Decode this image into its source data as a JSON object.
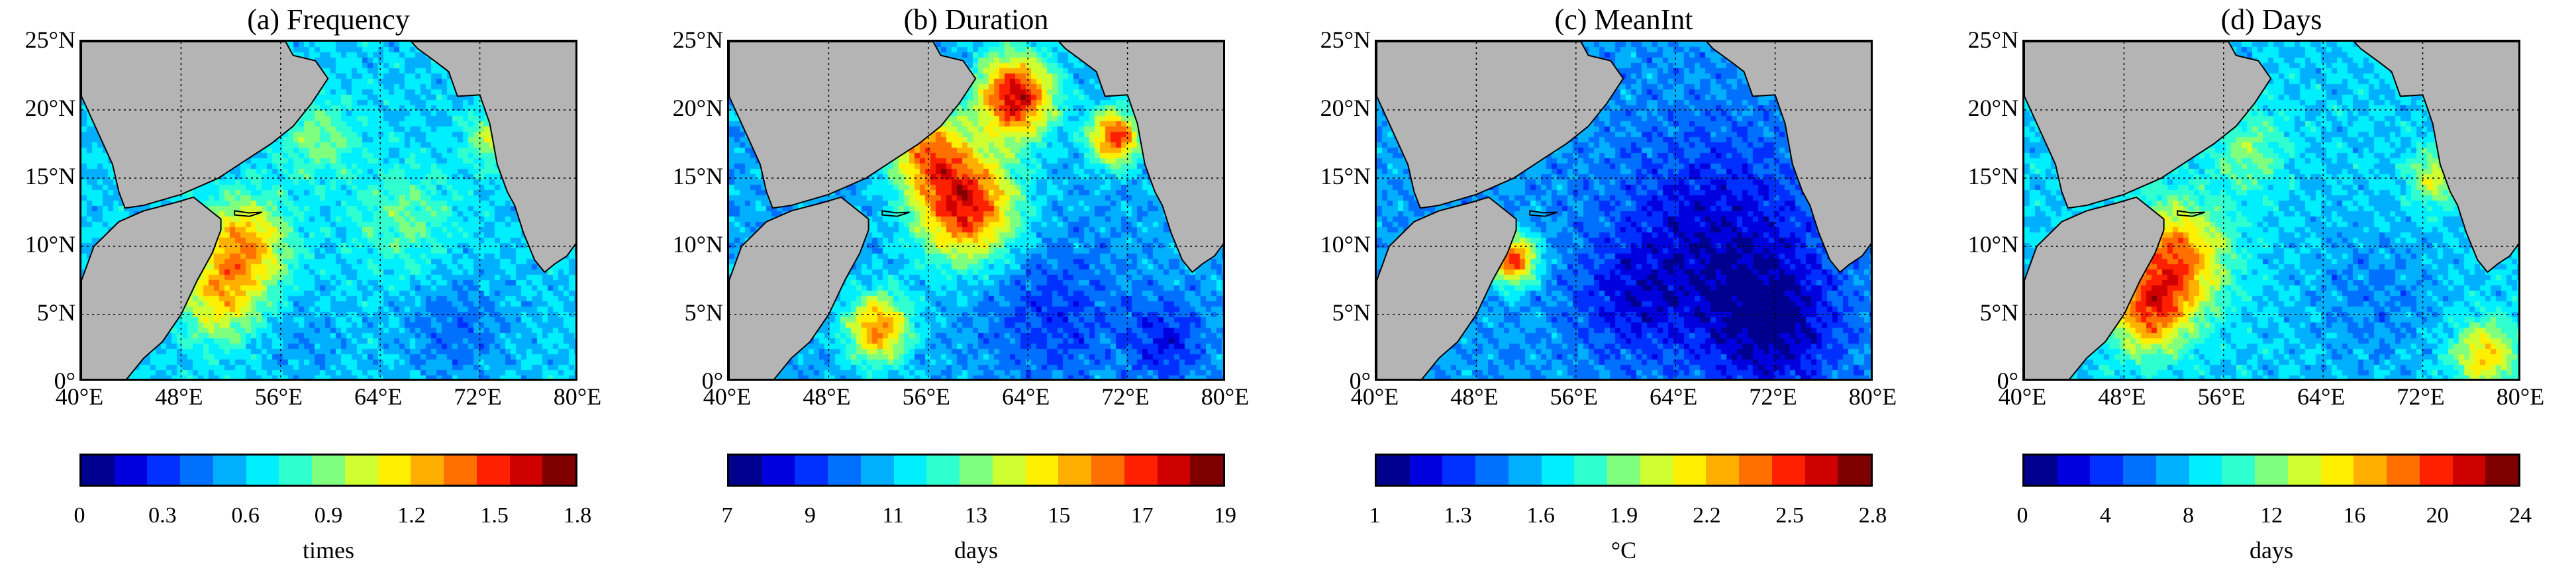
{
  "colormap": [
    "#00008f",
    "#0000df",
    "#0030ff",
    "#0070ff",
    "#00b0ff",
    "#00efff",
    "#30ffcf",
    "#80ff7f",
    "#cfff30",
    "#ffef00",
    "#ffaf00",
    "#ff7000",
    "#ff2000",
    "#cf0000",
    "#800000"
  ],
  "land_color": "#b4b4b4",
  "y_ticks": [
    "25°N",
    "20°N",
    "15°N",
    "10°N",
    "5°N",
    "0°"
  ],
  "x_ticks": [
    "40°E",
    "48°E",
    "56°E",
    "64°E",
    "72°E",
    "80°E"
  ],
  "chart_data": [
    {
      "type": "heatmap",
      "title": "(a) Frequency",
      "xlabel": "",
      "ylabel": "",
      "xlim": [
        40,
        80
      ],
      "ylim": [
        0,
        25
      ],
      "grid": true,
      "colorbar": {
        "ticks": [
          "0",
          "0.3",
          "0.6",
          "0.9",
          "1.2",
          "1.5",
          "1.8"
        ],
        "range": [
          0,
          1.8
        ],
        "label": "times"
      },
      "field": {
        "background": 0.6,
        "hotspots": [
          {
            "lon": 53,
            "lat": 10,
            "r": 3.5,
            "v": 1.3
          },
          {
            "lon": 51,
            "lat": 6,
            "r": 3,
            "v": 1.1
          },
          {
            "lon": 59,
            "lat": 18,
            "r": 3,
            "v": 0.9
          },
          {
            "lon": 66,
            "lat": 12,
            "r": 4,
            "v": 0.85
          },
          {
            "lon": 70,
            "lat": 4,
            "r": 4,
            "v": 0.4
          },
          {
            "lon": 58,
            "lat": 3,
            "r": 3,
            "v": 0.5
          },
          {
            "lon": 73,
            "lat": 18,
            "r": 2,
            "v": 1.0
          }
        ]
      }
    },
    {
      "type": "heatmap",
      "title": "(b) Duration",
      "xlabel": "",
      "ylabel": "",
      "xlim": [
        40,
        80
      ],
      "ylim": [
        0,
        25
      ],
      "grid": true,
      "colorbar": {
        "ticks": [
          "7",
          "9",
          "11",
          "13",
          "15",
          "17",
          "19"
        ],
        "range": [
          7,
          19
        ],
        "label": "days"
      },
      "field": {
        "background": 10.5,
        "hotspots": [
          {
            "lon": 59,
            "lat": 13,
            "r": 4,
            "v": 17.5
          },
          {
            "lon": 63,
            "lat": 21,
            "r": 3,
            "v": 18
          },
          {
            "lon": 52,
            "lat": 4,
            "r": 2.5,
            "v": 16
          },
          {
            "lon": 71,
            "lat": 18,
            "r": 2,
            "v": 17
          },
          {
            "lon": 66,
            "lat": 5,
            "r": 5,
            "v": 9
          },
          {
            "lon": 75,
            "lat": 3,
            "r": 3,
            "v": 8.5
          },
          {
            "lon": 56,
            "lat": 17,
            "r": 3,
            "v": 15
          }
        ]
      }
    },
    {
      "type": "heatmap",
      "title": "(c) MeanInt",
      "xlabel": "",
      "ylabel": "",
      "xlim": [
        40,
        80
      ],
      "ylim": [
        0,
        25
      ],
      "grid": true,
      "colorbar": {
        "ticks": [
          "1",
          "1.3",
          "1.6",
          "1.9",
          "2.2",
          "2.5",
          "2.8"
        ],
        "range": [
          1,
          2.8
        ],
        "label": "°C"
      },
      "field": {
        "background": 1.5,
        "hotspots": [
          {
            "lon": 51,
            "lat": 9,
            "r": 1.8,
            "v": 2.5
          },
          {
            "lon": 67,
            "lat": 10,
            "r": 8,
            "v": 1.15
          },
          {
            "lon": 72,
            "lat": 4,
            "r": 5,
            "v": 1.15
          },
          {
            "lon": 60,
            "lat": 6,
            "r": 4,
            "v": 1.3
          },
          {
            "lon": 46,
            "lat": 15,
            "r": 2,
            "v": 1.4
          }
        ]
      }
    },
    {
      "type": "heatmap",
      "title": "(d) Days",
      "xlabel": "",
      "ylabel": "",
      "xlim": [
        40,
        80
      ],
      "ylim": [
        0,
        25
      ],
      "grid": true,
      "colorbar": {
        "ticks": [
          "0",
          "4",
          "8",
          "12",
          "16",
          "20",
          "24"
        ],
        "range": [
          0,
          24
        ],
        "label": "days"
      },
      "field": {
        "background": 8,
        "hotspots": [
          {
            "lon": 52,
            "lat": 9,
            "r": 4,
            "v": 19
          },
          {
            "lon": 50,
            "lat": 5,
            "r": 3,
            "v": 17
          },
          {
            "lon": 58,
            "lat": 17,
            "r": 3,
            "v": 12
          },
          {
            "lon": 73,
            "lat": 15,
            "r": 2,
            "v": 14
          },
          {
            "lon": 68,
            "lat": 6,
            "r": 5,
            "v": 6
          },
          {
            "lon": 77,
            "lat": 2,
            "r": 2.5,
            "v": 16
          }
        ]
      }
    }
  ]
}
